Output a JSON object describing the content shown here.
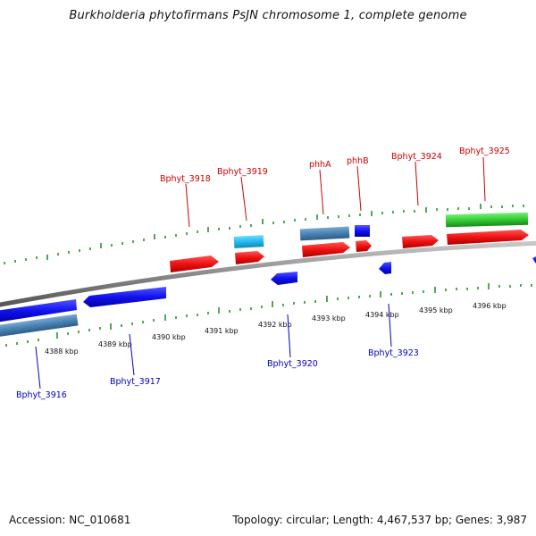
{
  "title": "Burkholderia phytofirmans PsJN chromosome 1, complete genome",
  "accession_text": "Accession: NC_010681",
  "topology_text": "Topology: circular; Length: 4,467,537 bp; Genes: 3,987",
  "colors": {
    "forward_cds": "#ee1111",
    "reverse_cds": "#1111ee",
    "rna": "#33cc33",
    "gene_light_blue": "#22bbee",
    "steel_blue": "#4682b4",
    "tick": "#1a8a1a",
    "backbone": "#8a8a8a"
  },
  "kbp_labels": [
    "4388 kbp",
    "4389 kbp",
    "4390 kbp",
    "4391 kbp",
    "4392 kbp",
    "4393 kbp",
    "4394 kbp",
    "4395 kbp",
    "4396 kbp"
  ],
  "top_labels": [
    "Bphyt_3918",
    "Bphyt_3919",
    "phhA",
    "phhB",
    "Bphyt_3924",
    "Bphyt_3925"
  ],
  "bottom_labels": [
    "Bphyt_3916",
    "Bphyt_3917",
    "Bphyt_3920",
    "Bphyt_3923"
  ]
}
